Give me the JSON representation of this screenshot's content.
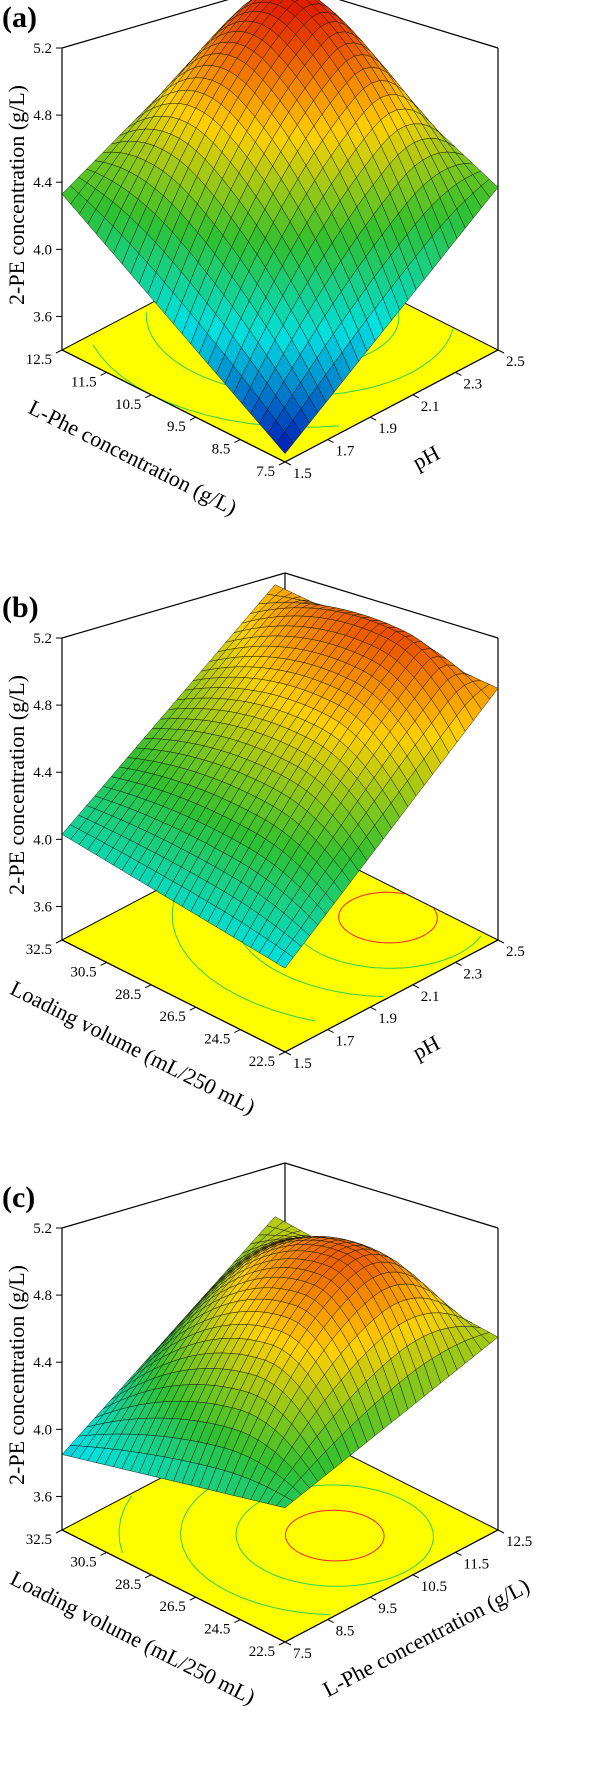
{
  "colors": {
    "floor": "#ffff00",
    "low": "#0000b0",
    "mid": "#00e0e0",
    "midhigh": "#30c030",
    "high": "#ffd000",
    "top": "#e02000",
    "contour_green": "#30d050",
    "contour_red": "#ff2020"
  },
  "chart_data": [
    {
      "panel": "(a)",
      "type": "surface",
      "zlabel": "2-PE concentration (g/L)",
      "z_ticks": [
        "3.6",
        "4.0",
        "4.4",
        "4.8",
        "5.2"
      ],
      "zlim": [
        3.4,
        5.2
      ],
      "left_axis": {
        "label": "L-Phe concentration (g/L)",
        "ticks": [
          "12.5",
          "11.5",
          "10.5",
          "9.5",
          "8.5",
          "7.5"
        ],
        "range": [
          7.5,
          12.5
        ]
      },
      "right_axis": {
        "label": "pH",
        "ticks": [
          "1.5",
          "1.7",
          "1.9",
          "2.1",
          "2.3",
          "2.5"
        ],
        "range": [
          1.5,
          2.5
        ]
      },
      "corner_values": {
        "front": 3.45,
        "left_back": 4.33,
        "right_back": 4.37,
        "back": 4.95
      },
      "peak_value": 5.18,
      "peak_at": {
        "left_axis": 10.5,
        "right_axis": 2.2
      }
    },
    {
      "panel": "(b)",
      "type": "surface",
      "zlabel": "2-PE concentration (g/L)",
      "z_ticks": [
        "3.6",
        "4.0",
        "4.4",
        "4.8",
        "5.2"
      ],
      "zlim": [
        3.4,
        5.2
      ],
      "left_axis": {
        "label": "Loading volume (mL/250 mL)",
        "ticks": [
          "32.5",
          "30.5",
          "28.5",
          "26.5",
          "24.5",
          "22.5"
        ],
        "range": [
          22.5,
          32.5
        ]
      },
      "right_axis": {
        "label": "pH",
        "ticks": [
          "1.5",
          "1.7",
          "1.9",
          "2.1",
          "2.3",
          "2.5"
        ],
        "range": [
          1.5,
          2.5
        ]
      },
      "corner_values": {
        "front": 3.9,
        "left_back": 4.03,
        "right_back": 4.9,
        "back": 4.85
      },
      "peak_value": 5.07,
      "peak_at": {
        "left_axis": 26.0,
        "right_axis": 2.35
      }
    },
    {
      "panel": "(c)",
      "type": "surface",
      "zlabel": "2-PE concentration (g/L)",
      "z_ticks": [
        "3.6",
        "4.0",
        "4.4",
        "4.8",
        "5.2"
      ],
      "zlim": [
        3.4,
        5.2
      ],
      "left_axis": {
        "label": "Loading volume (mL/250 mL)",
        "ticks": [
          "32.5",
          "30.5",
          "28.5",
          "26.5",
          "24.5",
          "22.5"
        ],
        "range": [
          22.5,
          32.5
        ]
      },
      "right_axis": {
        "label": "L-Phe concentration (g/L)",
        "ticks": [
          "7.5",
          "8.5",
          "9.5",
          "10.5",
          "11.5",
          "12.5"
        ],
        "range": [
          7.5,
          12.5
        ]
      },
      "corner_values": {
        "front": 4.2,
        "left_back": 3.85,
        "right_back": 4.55,
        "back": 4.6
      },
      "peak_value": 5.03,
      "peak_at": {
        "left_axis": 26.0,
        "right_axis": 10.5
      }
    }
  ]
}
